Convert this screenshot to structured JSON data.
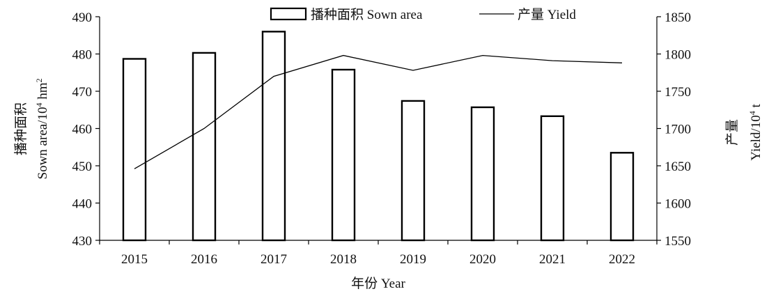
{
  "chart_data": {
    "type": "bar",
    "categories": [
      "2015",
      "2016",
      "2017",
      "2018",
      "2019",
      "2020",
      "2021",
      "2022"
    ],
    "series": [
      {
        "name": "播种面积 Sown area",
        "type": "bar",
        "axis": "left",
        "values": [
          478.7,
          480.3,
          486.0,
          475.8,
          467.4,
          465.7,
          463.3,
          453.5
        ]
      },
      {
        "name": "产量 Yield",
        "type": "line",
        "axis": "right",
        "values": [
          1646,
          1700,
          1770,
          1798,
          1778,
          1798,
          1791,
          1788
        ]
      }
    ],
    "xlabel": "年份 Year",
    "ylabel_left_cn": "播种面积",
    "ylabel_left_en_prefix": "Sown area/10",
    "ylabel_left_en_sup": "4",
    "ylabel_left_en_suffix": " hm",
    "ylabel_left_en_sup2": "2",
    "ylabel_right_cn": "产量",
    "ylabel_right_en_prefix": "Yield/10",
    "ylabel_right_en_sup": "4",
    "ylabel_right_en_suffix": " t",
    "ylim_left": [
      430,
      490
    ],
    "ylim_right": [
      1550,
      1850
    ],
    "yticks_left": [
      "430",
      "440",
      "450",
      "460",
      "470",
      "480",
      "490"
    ],
    "yticks_right": [
      "1550",
      "1600",
      "1650",
      "1700",
      "1750",
      "1800",
      "1850"
    ],
    "legend_position": "top-center",
    "grid": false,
    "colors": {
      "bar_fill": "#ffffff",
      "bar_stroke": "#000000",
      "line": "#000000",
      "axis": "#000000"
    }
  }
}
